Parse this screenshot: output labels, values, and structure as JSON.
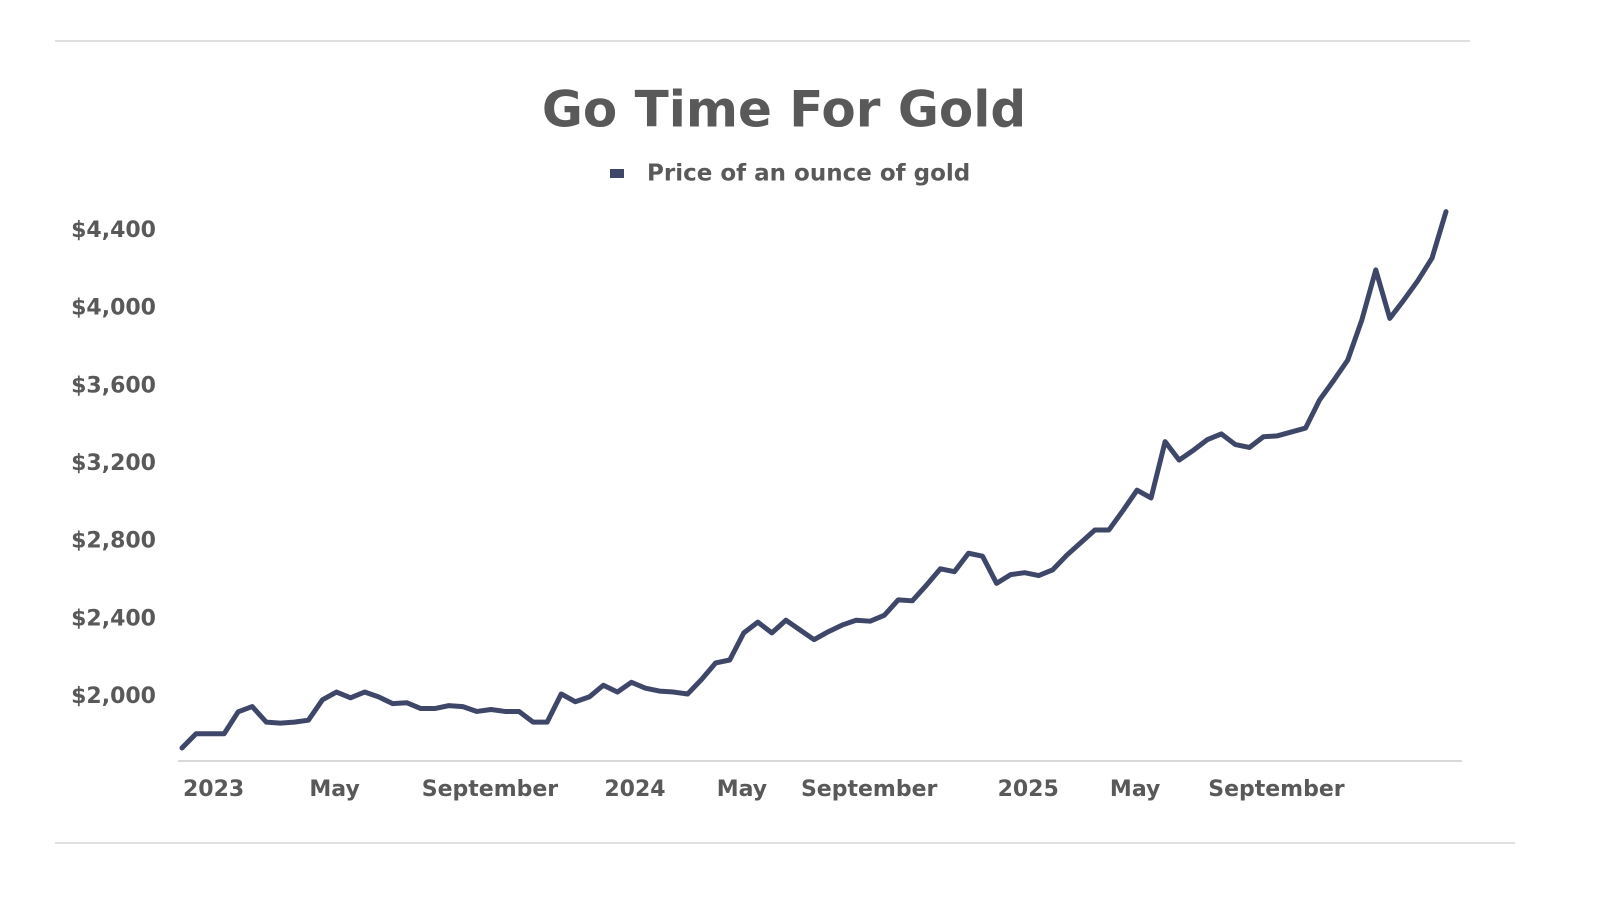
{
  "chart_data": {
    "type": "line",
    "title": "Go Time For Gold",
    "categories": [
      "2023",
      null,
      null,
      null,
      null,
      null,
      null,
      null,
      null,
      "May",
      null,
      null,
      null,
      null,
      null,
      null,
      null,
      "September",
      null,
      null,
      null,
      null,
      null,
      null,
      null,
      null,
      null,
      null,
      null,
      null,
      "2024",
      null,
      null,
      null,
      null,
      null,
      null,
      null,
      "May",
      null,
      null,
      null,
      null,
      null,
      "September",
      null,
      null,
      null,
      null,
      null,
      null,
      null,
      null,
      null,
      null,
      null,
      null,
      null,
      "2025",
      null,
      null,
      null,
      null,
      null,
      null,
      null,
      "May",
      null,
      null,
      null,
      null,
      null,
      null,
      "September",
      null,
      null,
      null,
      null,
      null,
      null,
      null,
      null,
      null,
      null,
      null,
      null,
      null,
      null,
      null,
      null,
      null
    ],
    "series": [
      {
        "name": "Price of an ounce of gold",
        "color": "#3f4769",
        "values": [
          1737,
          1810,
          1810,
          1810,
          1923,
          1950,
          1870,
          1865,
          1870,
          1880,
          1985,
          2025,
          1995,
          2025,
          2000,
          1965,
          1970,
          1940,
          1940,
          1955,
          1950,
          1925,
          1935,
          1925,
          1925,
          1870,
          1870,
          2015,
          1975,
          2000,
          2060,
          2025,
          2075,
          2045,
          2030,
          2025,
          2015,
          2090,
          2175,
          2190,
          2330,
          2385,
          2330,
          2395,
          2345,
          2295,
          2335,
          2370,
          2395,
          2390,
          2420,
          2500,
          2495,
          2575,
          2660,
          2645,
          2740,
          2725,
          2585,
          2630,
          2640,
          2625,
          2655,
          2730,
          2795,
          2860,
          2860,
          2960,
          3065,
          3025,
          3315,
          3220,
          3270,
          3325,
          3355,
          3300,
          3285,
          3340,
          3345,
          3365,
          3385,
          3530,
          3630,
          3735,
          3940,
          4200,
          3950,
          4045,
          4145,
          4260,
          4500
        ]
      }
    ],
    "ylim": [
      1680,
      4560
    ],
    "yticks": [
      {
        "value": 2000,
        "label": "$2,000"
      },
      {
        "value": 2400,
        "label": "$2,400"
      },
      {
        "value": 2800,
        "label": "$2,800"
      },
      {
        "value": 3200,
        "label": "$3,200"
      },
      {
        "value": 3600,
        "label": "$3,600"
      },
      {
        "value": 4000,
        "label": "$4,000"
      },
      {
        "value": 4400,
        "label": "$4,400"
      }
    ],
    "grid": false,
    "legend": "top"
  }
}
